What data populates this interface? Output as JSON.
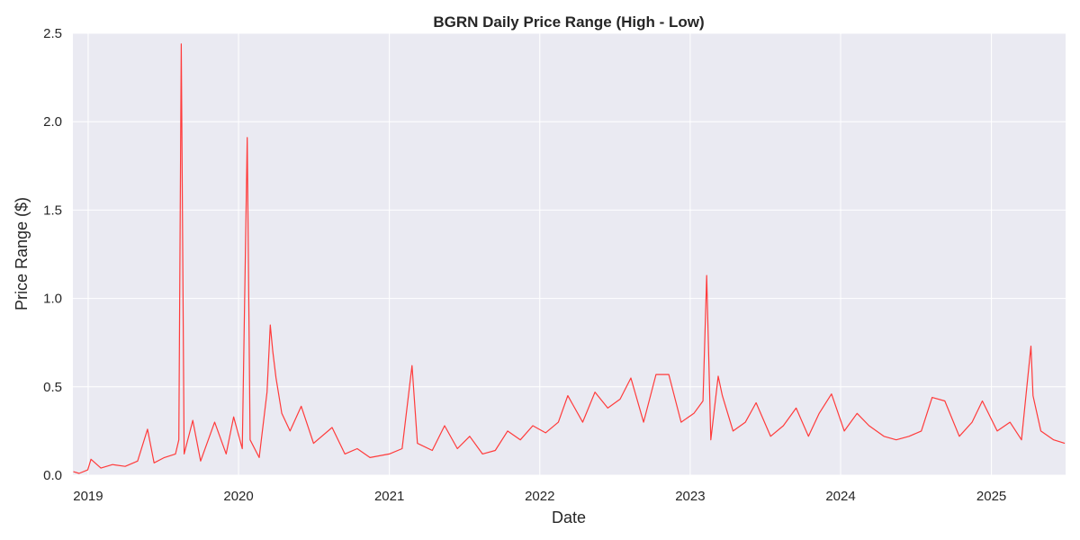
{
  "chart_data": {
    "type": "line",
    "title": "BGRN Daily Price Range (High - Low)",
    "xlabel": "Date",
    "ylabel": "Price Range ($)",
    "xlim": [
      "2018-11-25",
      "2025-06-30"
    ],
    "ylim": [
      0,
      2.5
    ],
    "x_ticks": [
      "2019",
      "2020",
      "2021",
      "2022",
      "2023",
      "2024",
      "2025"
    ],
    "y_ticks": [
      "0.0",
      "0.5",
      "1.0",
      "1.5",
      "2.0",
      "2.5"
    ],
    "grid": true,
    "legend": "none",
    "colors": {
      "line": "#ff3b3b",
      "plot_bg": "#eaeaf2",
      "grid": "#ffffff"
    },
    "series": [
      {
        "points": [
          [
            "2018-11-26",
            0.02
          ],
          [
            "2018-12-10",
            0.01
          ],
          [
            "2018-12-31",
            0.03
          ],
          [
            "2019-01-08",
            0.09
          ],
          [
            "2019-02-01",
            0.04
          ],
          [
            "2019-03-01",
            0.06
          ],
          [
            "2019-04-01",
            0.05
          ],
          [
            "2019-05-01",
            0.08
          ],
          [
            "2019-05-25",
            0.26
          ],
          [
            "2019-06-10",
            0.07
          ],
          [
            "2019-07-05",
            0.1
          ],
          [
            "2019-08-01",
            0.12
          ],
          [
            "2019-08-09",
            0.2
          ],
          [
            "2019-08-15",
            2.44
          ],
          [
            "2019-08-22",
            0.12
          ],
          [
            "2019-09-12",
            0.31
          ],
          [
            "2019-10-01",
            0.08
          ],
          [
            "2019-11-04",
            0.3
          ],
          [
            "2019-12-02",
            0.12
          ],
          [
            "2019-12-20",
            0.33
          ],
          [
            "2020-01-10",
            0.15
          ],
          [
            "2020-01-22",
            1.91
          ],
          [
            "2020-01-29",
            0.2
          ],
          [
            "2020-02-20",
            0.1
          ],
          [
            "2020-03-10",
            0.47
          ],
          [
            "2020-03-18",
            0.85
          ],
          [
            "2020-03-24",
            0.7
          ],
          [
            "2020-04-01",
            0.55
          ],
          [
            "2020-04-15",
            0.35
          ],
          [
            "2020-05-05",
            0.25
          ],
          [
            "2020-06-01",
            0.39
          ],
          [
            "2020-07-01",
            0.18
          ],
          [
            "2020-08-15",
            0.27
          ],
          [
            "2020-09-15",
            0.12
          ],
          [
            "2020-10-15",
            0.15
          ],
          [
            "2020-11-15",
            0.1
          ],
          [
            "2021-01-01",
            0.12
          ],
          [
            "2021-02-01",
            0.15
          ],
          [
            "2021-02-25",
            0.62
          ],
          [
            "2021-03-10",
            0.18
          ],
          [
            "2021-04-15",
            0.14
          ],
          [
            "2021-05-15",
            0.28
          ],
          [
            "2021-06-15",
            0.15
          ],
          [
            "2021-07-15",
            0.22
          ],
          [
            "2021-08-15",
            0.12
          ],
          [
            "2021-09-15",
            0.14
          ],
          [
            "2021-10-15",
            0.25
          ],
          [
            "2021-11-15",
            0.2
          ],
          [
            "2021-12-15",
            0.28
          ],
          [
            "2022-01-15",
            0.24
          ],
          [
            "2022-02-15",
            0.3
          ],
          [
            "2022-03-10",
            0.45
          ],
          [
            "2022-04-15",
            0.3
          ],
          [
            "2022-05-15",
            0.47
          ],
          [
            "2022-06-15",
            0.38
          ],
          [
            "2022-07-15",
            0.43
          ],
          [
            "2022-08-10",
            0.55
          ],
          [
            "2022-09-10",
            0.3
          ],
          [
            "2022-10-10",
            0.57
          ],
          [
            "2022-11-10",
            0.57
          ],
          [
            "2022-12-10",
            0.3
          ],
          [
            "2023-01-10",
            0.35
          ],
          [
            "2023-02-01",
            0.42
          ],
          [
            "2023-02-10",
            1.13
          ],
          [
            "2023-02-20",
            0.2
          ],
          [
            "2023-03-10",
            0.56
          ],
          [
            "2023-03-20",
            0.45
          ],
          [
            "2023-04-15",
            0.25
          ],
          [
            "2023-05-15",
            0.3
          ],
          [
            "2023-06-10",
            0.41
          ],
          [
            "2023-07-15",
            0.22
          ],
          [
            "2023-08-15",
            0.28
          ],
          [
            "2023-09-15",
            0.38
          ],
          [
            "2023-10-15",
            0.22
          ],
          [
            "2023-11-10",
            0.35
          ],
          [
            "2023-12-10",
            0.46
          ],
          [
            "2024-01-10",
            0.25
          ],
          [
            "2024-02-10",
            0.35
          ],
          [
            "2024-03-10",
            0.28
          ],
          [
            "2024-04-15",
            0.22
          ],
          [
            "2024-05-15",
            0.2
          ],
          [
            "2024-06-15",
            0.22
          ],
          [
            "2024-07-15",
            0.25
          ],
          [
            "2024-08-10",
            0.44
          ],
          [
            "2024-09-10",
            0.42
          ],
          [
            "2024-10-15",
            0.22
          ],
          [
            "2024-11-15",
            0.3
          ],
          [
            "2024-12-10",
            0.42
          ],
          [
            "2025-01-15",
            0.25
          ],
          [
            "2025-02-15",
            0.3
          ],
          [
            "2025-03-15",
            0.2
          ],
          [
            "2025-04-07",
            0.73
          ],
          [
            "2025-04-12",
            0.45
          ],
          [
            "2025-05-01",
            0.25
          ],
          [
            "2025-06-01",
            0.2
          ],
          [
            "2025-06-28",
            0.18
          ]
        ]
      }
    ]
  }
}
